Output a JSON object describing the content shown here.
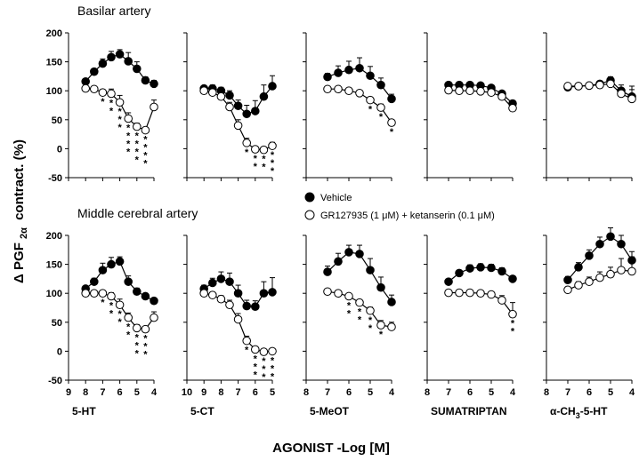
{
  "chart_data": {
    "type": "line",
    "y_axis_title_parts": {
      "delta": "Δ",
      "pgf": "PGF",
      "sub": "2α",
      "rest": "contract. (%)"
    },
    "x_axis_title": "AGONIST -Log [M]",
    "rows": [
      {
        "title": "Basilar artery"
      },
      {
        "title": "Middle cerebral artery"
      }
    ],
    "legend": {
      "vehicle": "Vehicle",
      "antagonist": "GR127935 (1 μM) + ketanserin (0.1 μM)"
    },
    "ylim": [
      -50,
      200
    ],
    "yticks": [
      "200",
      "150",
      "100",
      "50",
      "0",
      "-50"
    ],
    "panels": [
      {
        "name": "5-HT",
        "label_parts": [
          "5-HT"
        ],
        "row": 0,
        "col": 0,
        "xlim": [
          9,
          4
        ],
        "xticks": [
          "9",
          "8",
          "7",
          "6",
          "5",
          "4"
        ],
        "series": [
          {
            "key": "vehicle",
            "filled": true,
            "x": [
              8.0,
              7.5,
              7.0,
              6.5,
              6.0,
              5.5,
              5.0,
              4.5,
              4.0
            ],
            "y": [
              116,
              133,
              147,
              158,
              163,
              151,
              138,
              118,
              112
            ],
            "err": [
              4,
              5,
              8,
              10,
              8,
              15,
              12,
              6,
              6
            ]
          },
          {
            "key": "antagonist",
            "filled": false,
            "x": [
              8.0,
              7.5,
              7.0,
              6.5,
              6.0,
              5.5,
              5.0,
              4.5,
              4.0
            ],
            "y": [
              104,
              103,
              97,
              95,
              80,
              52,
              38,
              32,
              72
            ],
            "err": [
              5,
              5,
              5,
              8,
              12,
              10,
              6,
              5,
              12
            ]
          }
        ],
        "sig": [
          {
            "x": 7.0,
            "n": 1
          },
          {
            "x": 6.5,
            "n": 2
          },
          {
            "x": 6.0,
            "n": 3
          },
          {
            "x": 5.5,
            "n": 4
          },
          {
            "x": 5.0,
            "n": 4
          },
          {
            "x": 4.5,
            "n": 4
          }
        ],
        "sig_text": "*"
      },
      {
        "name": "5-CT",
        "label_parts": [
          "5-CT"
        ],
        "row": 0,
        "col": 1,
        "xlim": [
          10,
          5
        ],
        "xticks": [
          "10",
          "9",
          "8",
          "7",
          "6",
          "5"
        ],
        "series": [
          {
            "key": "vehicle",
            "filled": true,
            "x": [
              9.0,
              8.5,
              8.0,
              7.5,
              7.0,
              6.5,
              6.0,
              5.5,
              5.0
            ],
            "y": [
              104,
              104,
              100,
              92,
              74,
              60,
              65,
              90,
              108
            ],
            "err": [
              4,
              6,
              6,
              8,
              10,
              15,
              18,
              20,
              18
            ]
          },
          {
            "key": "antagonist",
            "filled": false,
            "x": [
              9.0,
              8.5,
              8.0,
              7.5,
              7.0,
              6.5,
              6.0,
              5.5,
              5.0
            ],
            "y": [
              100,
              97,
              90,
              72,
              40,
              10,
              -1,
              -2,
              5
            ],
            "err": [
              4,
              5,
              6,
              8,
              10,
              8,
              5,
              4,
              6
            ]
          }
        ],
        "sig": [
          {
            "x": 6.5,
            "n": 1
          },
          {
            "x": 6.0,
            "n": 2
          },
          {
            "x": 5.5,
            "n": 2
          },
          {
            "x": 5.0,
            "n": 3
          }
        ],
        "sig_text": "*"
      },
      {
        "name": "5-MeOT",
        "label_parts": [
          "5-MeOT"
        ],
        "row": 0,
        "col": 2,
        "xlim": [
          8,
          4
        ],
        "xticks": [
          "8",
          "7",
          "6",
          "5",
          "4"
        ],
        "series": [
          {
            "key": "vehicle",
            "filled": true,
            "x": [
              7.0,
              6.5,
              6.0,
              5.5,
              5.0,
              4.5,
              4.0
            ],
            "y": [
              124,
              131,
              136,
              139,
              126,
              110,
              86
            ],
            "err": [
              6,
              12,
              15,
              18,
              16,
              12,
              8
            ]
          },
          {
            "key": "antagonist",
            "filled": false,
            "x": [
              7.0,
              6.5,
              6.0,
              5.5,
              5.0,
              4.5,
              4.0
            ],
            "y": [
              103,
              103,
              100,
              96,
              84,
              71,
              45
            ],
            "err": [
              4,
              4,
              4,
              4,
              5,
              6,
              5
            ]
          }
        ],
        "sig": [
          {
            "x": 5.0,
            "n": 1
          },
          {
            "x": 4.5,
            "n": 1
          },
          {
            "x": 4.0,
            "n": 1
          }
        ],
        "sig_text": "*"
      },
      {
        "name": "SUMATRIPTAN",
        "label_parts": [
          "SUMATRIPTAN"
        ],
        "row": 0,
        "col": 3,
        "xlim": [
          8,
          4
        ],
        "xticks": [
          "8",
          "7",
          "6",
          "5",
          "4"
        ],
        "series": [
          {
            "key": "vehicle",
            "filled": true,
            "x": [
              7.0,
              6.5,
              6.0,
              5.5,
              5.0,
              4.5,
              4.0
            ],
            "y": [
              110,
              110,
              110,
              109,
              105,
              95,
              78
            ],
            "err": [
              3,
              3,
              3,
              3,
              3,
              4,
              5
            ]
          },
          {
            "key": "antagonist",
            "filled": false,
            "x": [
              7.0,
              6.5,
              6.0,
              5.5,
              5.0,
              4.5,
              4.0
            ],
            "y": [
              101,
              100,
              100,
              99,
              97,
              90,
              70
            ],
            "err": [
              3,
              3,
              3,
              3,
              3,
              4,
              5
            ]
          }
        ],
        "sig": [],
        "sig_text": "*"
      },
      {
        "name": "α-CH3-5-HT",
        "label_parts": [
          "α-CH",
          "3",
          "-5-HT"
        ],
        "row": 0,
        "col": 4,
        "xlim": [
          8,
          4
        ],
        "xticks": [
          "8",
          "7",
          "6",
          "5",
          "4"
        ],
        "series": [
          {
            "key": "vehicle",
            "filled": true,
            "x": [
              7.0,
              6.5,
              6.0,
              5.5,
              5.0,
              4.5,
              4.0
            ],
            "y": [
              106,
              108,
              109,
              112,
              118,
              100,
              90
            ],
            "err": [
              4,
              4,
              4,
              5,
              6,
              10,
              12
            ]
          },
          {
            "key": "antagonist",
            "filled": false,
            "x": [
              7.0,
              6.5,
              6.0,
              5.5,
              5.0,
              4.5,
              4.0
            ],
            "y": [
              108,
              108,
              109,
              110,
              112,
              95,
              86
            ],
            "err": [
              4,
              4,
              4,
              4,
              6,
              10,
              22
            ]
          }
        ],
        "sig": [],
        "sig_text": "*"
      },
      {
        "name": "5-HT",
        "label_parts": [
          "5-HT"
        ],
        "row": 1,
        "col": 0,
        "xlim": [
          9,
          4
        ],
        "xticks": [
          "9",
          "8",
          "7",
          "6",
          "5",
          "4"
        ],
        "series": [
          {
            "key": "vehicle",
            "filled": true,
            "x": [
              8.0,
              7.5,
              7.0,
              6.5,
              6.0,
              5.5,
              5.0,
              4.5,
              4.0
            ],
            "y": [
              108,
              120,
              140,
              150,
              155,
              120,
              103,
              95,
              87
            ],
            "err": [
              4,
              6,
              12,
              12,
              8,
              10,
              6,
              5,
              5
            ]
          },
          {
            "key": "antagonist",
            "filled": false,
            "x": [
              8.0,
              7.5,
              7.0,
              6.5,
              6.0,
              5.5,
              5.0,
              4.5,
              4.0
            ],
            "y": [
              100,
              100,
              100,
              95,
              80,
              58,
              40,
              38,
              58
            ],
            "err": [
              4,
              4,
              4,
              6,
              10,
              8,
              6,
              5,
              10
            ]
          }
        ],
        "sig": [
          {
            "x": 7.0,
            "n": 1
          },
          {
            "x": 6.5,
            "n": 2
          },
          {
            "x": 6.0,
            "n": 2
          },
          {
            "x": 5.5,
            "n": 2
          },
          {
            "x": 5.0,
            "n": 3
          },
          {
            "x": 4.5,
            "n": 3
          }
        ],
        "sig_text": "*"
      },
      {
        "name": "5-CT",
        "label_parts": [
          "5-CT"
        ],
        "row": 1,
        "col": 1,
        "xlim": [
          10,
          5
        ],
        "xticks": [
          "10",
          "9",
          "8",
          "7",
          "6",
          "5"
        ],
        "series": [
          {
            "key": "vehicle",
            "filled": true,
            "x": [
              9.0,
              8.5,
              8.0,
              7.5,
              7.0,
              6.5,
              6.0,
              5.5,
              5.0
            ],
            "y": [
              108,
              118,
              125,
              120,
              100,
              78,
              77,
              100,
              102
            ],
            "err": [
              6,
              8,
              12,
              15,
              14,
              10,
              10,
              20,
              25
            ]
          },
          {
            "key": "antagonist",
            "filled": false,
            "x": [
              9.0,
              8.5,
              8.0,
              7.5,
              7.0,
              6.5,
              6.0,
              5.5,
              5.0
            ],
            "y": [
              100,
              97,
              90,
              80,
              55,
              18,
              3,
              -1,
              0
            ],
            "err": [
              4,
              5,
              6,
              8,
              10,
              8,
              5,
              4,
              4
            ]
          }
        ],
        "sig": [
          {
            "x": 6.5,
            "n": 1
          },
          {
            "x": 6.0,
            "n": 3
          },
          {
            "x": 5.5,
            "n": 3
          },
          {
            "x": 5.0,
            "n": 3
          }
        ],
        "sig_text": "*"
      },
      {
        "name": "5-MeOT",
        "label_parts": [
          "5-MeOT"
        ],
        "row": 1,
        "col": 2,
        "xlim": [
          8,
          4
        ],
        "xticks": [
          "8",
          "7",
          "6",
          "5",
          "4"
        ],
        "series": [
          {
            "key": "vehicle",
            "filled": true,
            "x": [
              7.0,
              6.5,
              6.0,
              5.5,
              5.0,
              4.5,
              4.0
            ],
            "y": [
              137,
              155,
              171,
              168,
              140,
              110,
              85
            ],
            "err": [
              10,
              14,
              12,
              15,
              20,
              18,
              12
            ]
          },
          {
            "key": "antagonist",
            "filled": false,
            "x": [
              7.0,
              6.5,
              6.0,
              5.5,
              5.0,
              4.5,
              4.0
            ],
            "y": [
              103,
              100,
              95,
              84,
              70,
              45,
              42
            ],
            "err": [
              4,
              4,
              4,
              5,
              6,
              8,
              8
            ]
          }
        ],
        "sig": [
          {
            "x": 6.0,
            "n": 2
          },
          {
            "x": 5.5,
            "n": 2
          },
          {
            "x": 5.0,
            "n": 2
          },
          {
            "x": 4.5,
            "n": 1
          }
        ],
        "sig_text": "*"
      },
      {
        "name": "SUMATRIPTAN",
        "label_parts": [
          "SUMATRIPTAN"
        ],
        "row": 1,
        "col": 3,
        "xlim": [
          8,
          4
        ],
        "xticks": [
          "8",
          "7",
          "6",
          "5",
          "4"
        ],
        "series": [
          {
            "key": "vehicle",
            "filled": true,
            "x": [
              7.0,
              6.5,
              6.0,
              5.5,
              5.0,
              4.5,
              4.0
            ],
            "y": [
              120,
              135,
              143,
              145,
              144,
              138,
              125
            ],
            "err": [
              4,
              5,
              6,
              6,
              6,
              6,
              5
            ]
          },
          {
            "key": "antagonist",
            "filled": false,
            "x": [
              7.0,
              6.5,
              6.0,
              5.5,
              5.0,
              4.5,
              4.0
            ],
            "y": [
              101,
              101,
              101,
              100,
              98,
              88,
              64
            ],
            "err": [
              3,
              3,
              3,
              3,
              4,
              8,
              20
            ]
          }
        ],
        "sig": [
          {
            "x": 4.0,
            "n": 2
          }
        ],
        "sig_text": "*"
      },
      {
        "name": "α-CH3-5-HT",
        "label_parts": [
          "α-CH",
          "3",
          "-5-HT"
        ],
        "row": 1,
        "col": 4,
        "xlim": [
          8,
          4
        ],
        "xticks": [
          "8",
          "7",
          "6",
          "5",
          "4"
        ],
        "series": [
          {
            "key": "vehicle",
            "filled": true,
            "x": [
              7.0,
              6.5,
              6.0,
              5.5,
              5.0,
              4.5,
              4.0
            ],
            "y": [
              123,
              145,
              165,
              185,
              198,
              185,
              157
            ],
            "err": [
              6,
              8,
              10,
              12,
              15,
              15,
              15
            ]
          },
          {
            "key": "antagonist",
            "filled": false,
            "x": [
              7.0,
              6.5,
              6.0,
              5.5,
              5.0,
              4.5,
              4.0
            ],
            "y": [
              106,
              114,
              120,
              127,
              133,
              140,
              138
            ],
            "err": [
              4,
              6,
              8,
              10,
              12,
              20,
              25
            ]
          }
        ],
        "sig": [],
        "sig_text": "*"
      }
    ]
  }
}
